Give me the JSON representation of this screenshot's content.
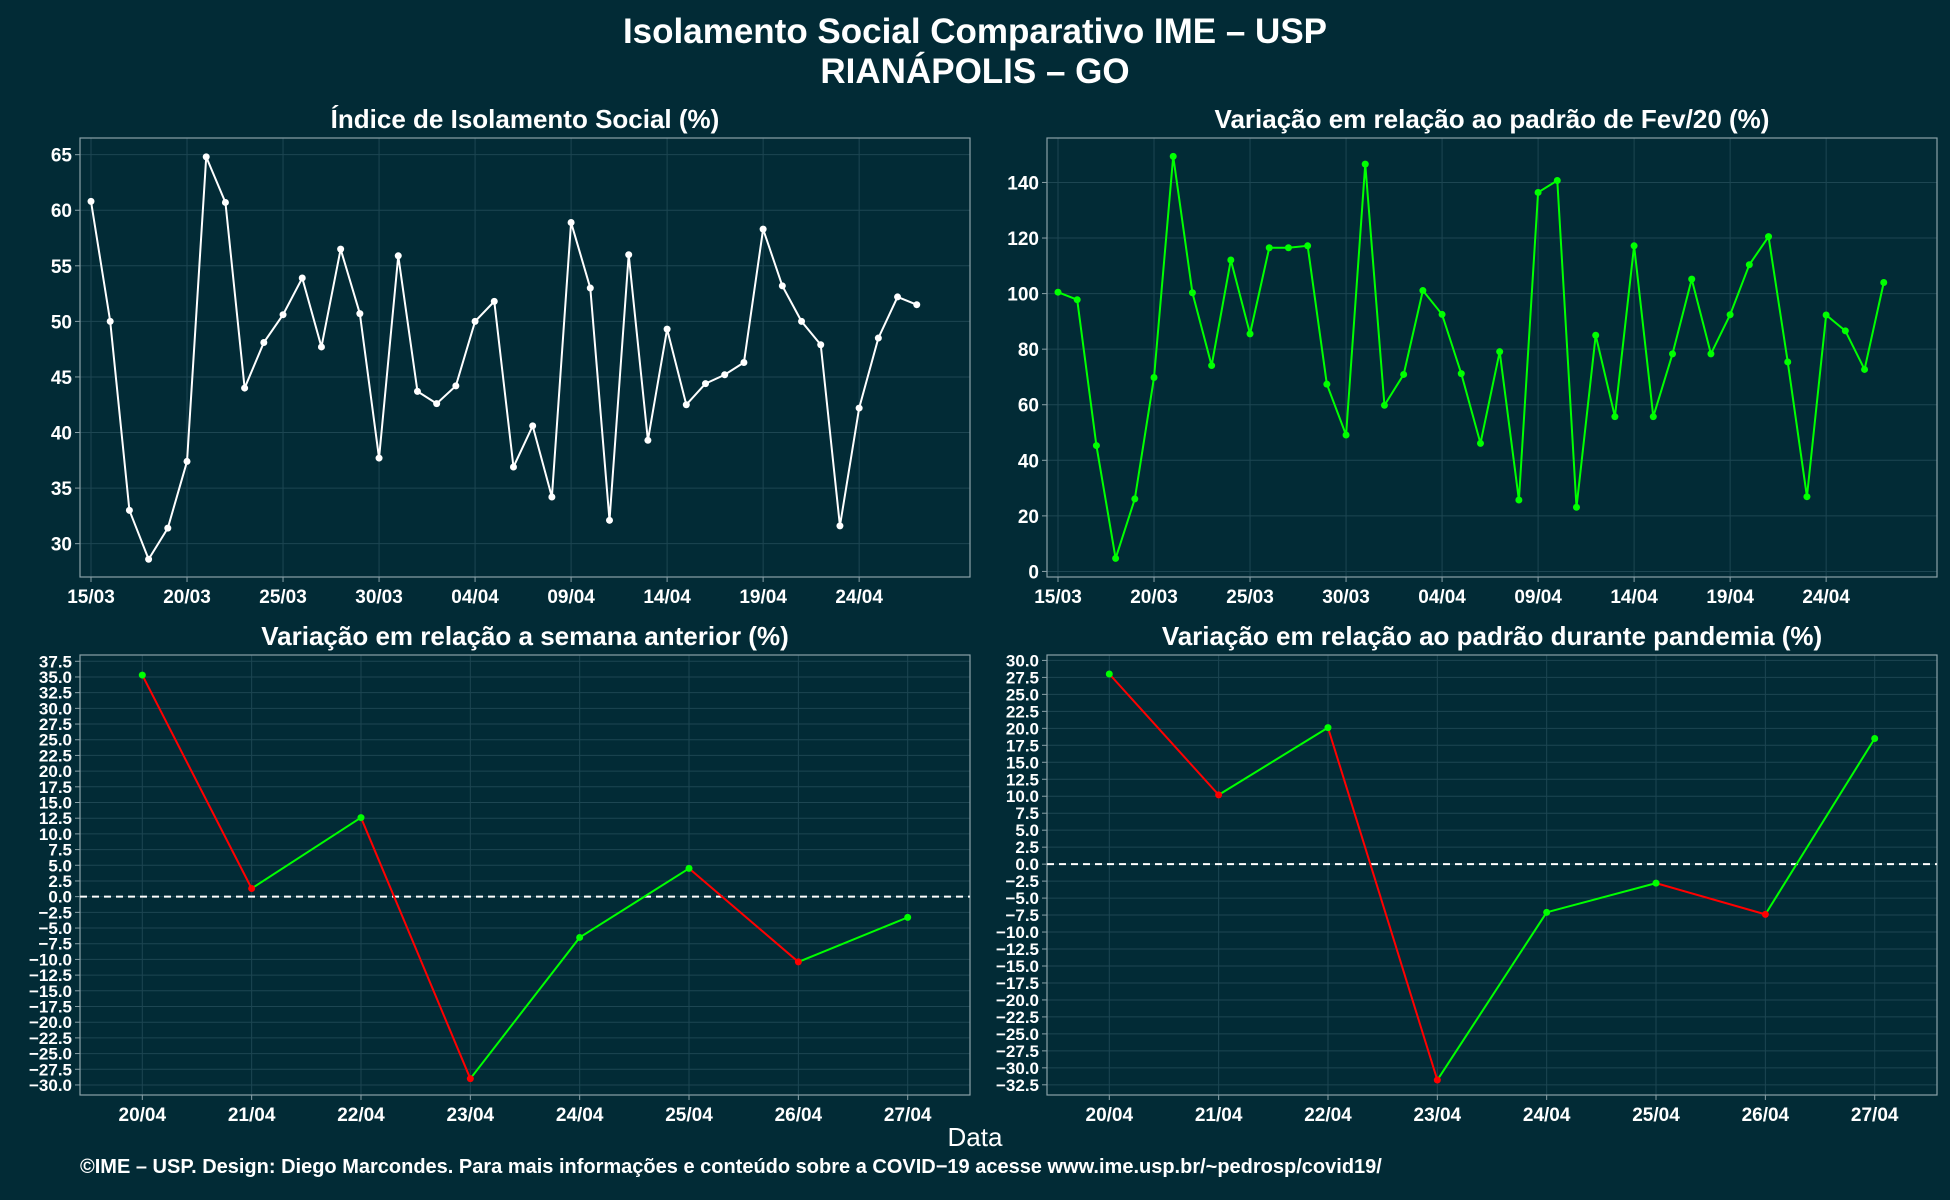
{
  "title_line1": "Isolamento Social Comparativo IME – USP",
  "title_line2": "RIANÁPOLIS – GO",
  "xlabel": "Data",
  "footer": "©IME – USP. Design: Diego Marcondes. Para mais informações e conteúdo sobre a COVID−19 acesse www.ime.usp.br/~pedrosp/covid19/",
  "colors": {
    "background": "#022b36",
    "positive": "#00ff00",
    "negative": "#ff0000",
    "index_line": "#ffffff"
  },
  "chart_data": [
    {
      "type": "line",
      "title": "Índice de Isolamento Social (%)",
      "x_labels": [
        "15/03",
        "20/03",
        "25/03",
        "30/03",
        "04/04",
        "09/04",
        "14/04",
        "19/04",
        "24/04"
      ],
      "y_ticks": [
        30,
        35,
        40,
        45,
        50,
        55,
        60,
        65
      ],
      "ylim": [
        27,
        66.5
      ],
      "color": "#ffffff",
      "values": [
        60.8,
        50.0,
        33.0,
        28.6,
        31.4,
        37.4,
        64.8,
        60.7,
        44.0,
        48.1,
        50.6,
        53.9,
        47.7,
        56.5,
        50.7,
        37.7,
        55.9,
        43.7,
        42.6,
        44.2,
        50.0,
        51.8,
        36.9,
        40.6,
        34.2,
        58.9,
        53.0,
        32.1,
        56.0,
        39.3,
        49.3,
        42.5,
        44.4,
        45.2,
        46.3,
        58.3,
        53.2,
        50.0,
        47.9,
        31.6,
        42.2,
        48.5,
        52.2,
        51.5
      ]
    },
    {
      "type": "line",
      "title": "Variação em relação ao padrão de Fev/20 (%)",
      "x_labels": [
        "15/03",
        "20/03",
        "25/03",
        "30/03",
        "04/04",
        "09/04",
        "14/04",
        "19/04",
        "24/04"
      ],
      "y_ticks": [
        0,
        20,
        40,
        60,
        80,
        100,
        120,
        140
      ],
      "ylim": [
        -2,
        156
      ],
      "color": "#00ff00",
      "values": [
        100.5,
        97.8,
        45.3,
        4.7,
        26.1,
        69.8,
        149.4,
        100.3,
        74.1,
        112.1,
        85.5,
        116.5,
        116.5,
        117.2,
        67.4,
        49.1,
        146.6,
        59.8,
        70.9,
        101.1,
        92.5,
        71.2,
        46.1,
        79.1,
        25.7,
        136.4,
        140.7,
        23.1,
        85.0,
        55.7,
        117.2,
        55.7,
        78.3,
        105.2,
        78.3,
        92.4,
        110.4,
        120.5,
        75.4,
        26.9,
        92.3,
        86.6,
        72.7,
        104.0
      ]
    },
    {
      "type": "line",
      "title": "Variação em relação a semana anterior (%)",
      "categories": [
        "20/04",
        "21/04",
        "22/04",
        "23/04",
        "24/04",
        "25/04",
        "26/04",
        "27/04"
      ],
      "y_ticks": [
        -30,
        -27.5,
        -25,
        -22.5,
        -20,
        -17.5,
        -15,
        -12.5,
        -10,
        -7.5,
        -5,
        -2.5,
        0,
        2.5,
        5,
        7.5,
        10,
        12.5,
        15,
        17.5,
        20,
        22.5,
        25,
        27.5,
        30,
        32.5,
        35,
        37.5
      ],
      "ylim": [
        -31.6,
        38.5
      ],
      "values": [
        35.3,
        1.3,
        12.6,
        -29.0,
        -6.5,
        4.5,
        -10.4,
        -3.3
      ],
      "reference_line": 0
    },
    {
      "type": "line",
      "title": "Variação em relação ao padrão durante pandemia (%)",
      "categories": [
        "20/04",
        "21/04",
        "22/04",
        "23/04",
        "24/04",
        "25/04",
        "26/04",
        "27/04"
      ],
      "y_ticks": [
        -32.5,
        -30,
        -27.5,
        -25,
        -22.5,
        -20,
        -17.5,
        -15,
        -12.5,
        -10,
        -7.5,
        -5,
        -2.5,
        0,
        2.5,
        5,
        7.5,
        10,
        12.5,
        15,
        17.5,
        20,
        22.5,
        25,
        27.5,
        30
      ],
      "ylim": [
        -34,
        30.8
      ],
      "values": [
        28.0,
        10.2,
        20.1,
        -31.8,
        -7.1,
        -2.8,
        -7.4,
        18.5
      ],
      "reference_line": 0
    }
  ]
}
